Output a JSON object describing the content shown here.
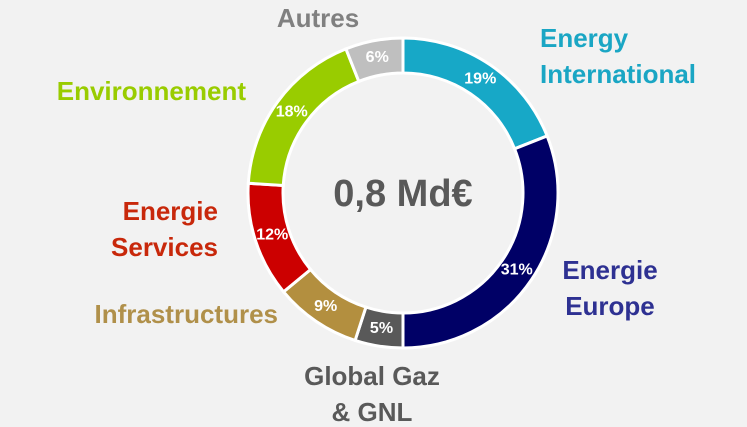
{
  "chart_data": {
    "type": "donut",
    "center_label": "0,8 Md€",
    "categories": [
      "Energy\nInternational",
      "Energie\nEurope",
      "Global Gaz\n& GNL",
      "Infrastructures",
      "Energie\nServices",
      "Environnement",
      "Autres"
    ],
    "values": [
      19,
      31,
      5,
      9,
      12,
      18,
      6
    ],
    "value_labels": [
      "19%",
      "31%",
      "5%",
      "9%",
      "12%",
      "18%",
      "6%"
    ],
    "colors": [
      "#17a8c7",
      "#000066",
      "#595959",
      "#b38f3f",
      "#cc0000",
      "#99cc00",
      "#bfbfbf"
    ],
    "label_colors": [
      "#1aa6c4",
      "#2e3192",
      "#595959",
      "#b0904a",
      "#c8280b",
      "#99cc00",
      "#808080"
    ]
  }
}
